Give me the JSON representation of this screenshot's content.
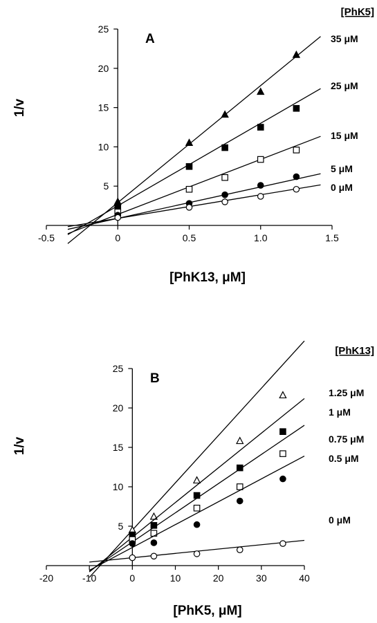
{
  "chart_data": [
    {
      "type": "line",
      "panel_label": "A",
      "xlabel": "[PhK13, μM]",
      "ylabel": "1/v",
      "legend_title": "[PhK5]",
      "xlim": [
        -0.5,
        1.5
      ],
      "ylim": [
        0,
        25
      ],
      "xticks": [
        -0.5,
        0,
        0.5,
        1.0,
        1.5
      ],
      "xtick_labels": [
        "-0.5",
        "0",
        "0.5",
        "1.0",
        "1.5"
      ],
      "yticks": [
        5,
        10,
        15,
        20,
        25
      ],
      "ytick_labels": [
        "5",
        "10",
        "15",
        "20",
        "25"
      ],
      "line_x_range": [
        -0.35,
        1.42
      ],
      "series": [
        {
          "name": "35 μM",
          "marker": "filled-triangle",
          "x": [
            0,
            0.5,
            0.75,
            1.0,
            1.25
          ],
          "y": [
            3.0,
            10.5,
            14.1,
            17.0,
            21.7
          ],
          "fit": {
            "slope": 14.9,
            "intercept": 2.9
          }
        },
        {
          "name": "25 μM",
          "marker": "filled-square",
          "x": [
            0,
            0.5,
            0.75,
            1.0,
            1.25
          ],
          "y": [
            2.3,
            7.5,
            9.9,
            12.5,
            14.9
          ],
          "fit": {
            "slope": 10.5,
            "intercept": 2.5
          }
        },
        {
          "name": "15 μM",
          "marker": "open-square",
          "x": [
            0,
            0.5,
            0.75,
            1.0,
            1.25
          ],
          "y": [
            1.7,
            4.6,
            6.1,
            8.4,
            9.6
          ],
          "fit": {
            "slope": 7.0,
            "intercept": 1.4
          }
        },
        {
          "name": "5 μM",
          "marker": "filled-circle",
          "x": [
            0,
            0.5,
            0.75,
            1.0,
            1.25
          ],
          "y": [
            1.3,
            2.8,
            3.9,
            5.1,
            6.2
          ],
          "fit": {
            "slope": 4.0,
            "intercept": 0.9
          }
        },
        {
          "name": "0 μM",
          "marker": "open-circle",
          "x": [
            0,
            0.5,
            0.75,
            1.0,
            1.25
          ],
          "y": [
            1.0,
            2.3,
            3.0,
            3.7,
            4.6
          ],
          "fit": {
            "slope": 3.0,
            "intercept": 0.9
          }
        }
      ]
    },
    {
      "type": "line",
      "panel_label": "B",
      "xlabel": "[PhK5, μM]",
      "ylabel": "1/v",
      "legend_title": "[PhK13]",
      "xlim": [
        -20,
        40
      ],
      "ylim": [
        0,
        25
      ],
      "xticks": [
        -20,
        -10,
        0,
        10,
        20,
        30,
        40
      ],
      "xtick_labels": [
        "-20",
        "-10",
        "0",
        "10",
        "20",
        "30",
        "40"
      ],
      "yticks": [
        5,
        10,
        15,
        20,
        25
      ],
      "ytick_labels": [
        "5",
        "10",
        "15",
        "20",
        "25"
      ],
      "line_x_range": [
        -10,
        40
      ],
      "series": [
        {
          "name": "1.25 μM",
          "marker": "open-triangle",
          "x": [
            0,
            5,
            15,
            25,
            35
          ],
          "y": [
            4.5,
            6.2,
            10.8,
            15.8,
            21.6
          ],
          "fit": {
            "slope": 0.6,
            "intercept": 4.5
          }
        },
        {
          "name": "1 μM",
          "marker": "filled-square",
          "x": [
            0,
            5,
            15,
            25,
            35
          ],
          "y": [
            3.9,
            5.1,
            8.9,
            12.4,
            17.0
          ],
          "fit": {
            "slope": 0.44,
            "intercept": 3.6
          }
        },
        {
          "name": "0.75 μM",
          "marker": "open-square",
          "x": [
            0,
            5,
            15,
            25,
            35
          ],
          "y": [
            3.3,
            4.1,
            7.3,
            10.0,
            14.2
          ],
          "fit": {
            "slope": 0.37,
            "intercept": 3.0
          }
        },
        {
          "name": "0.5 μM",
          "marker": "filled-circle",
          "x": [
            0,
            5,
            15,
            25,
            35
          ],
          "y": [
            2.8,
            2.9,
            5.2,
            8.2,
            11.0
          ],
          "fit": {
            "slope": 0.29,
            "intercept": 2.3
          }
        },
        {
          "name": "0 μM",
          "marker": "open-circle",
          "x": [
            0,
            5,
            15,
            25,
            35
          ],
          "y": [
            1.0,
            1.2,
            1.5,
            2.0,
            2.8
          ],
          "fit": {
            "slope": 0.055,
            "intercept": 1.0
          }
        }
      ]
    }
  ]
}
